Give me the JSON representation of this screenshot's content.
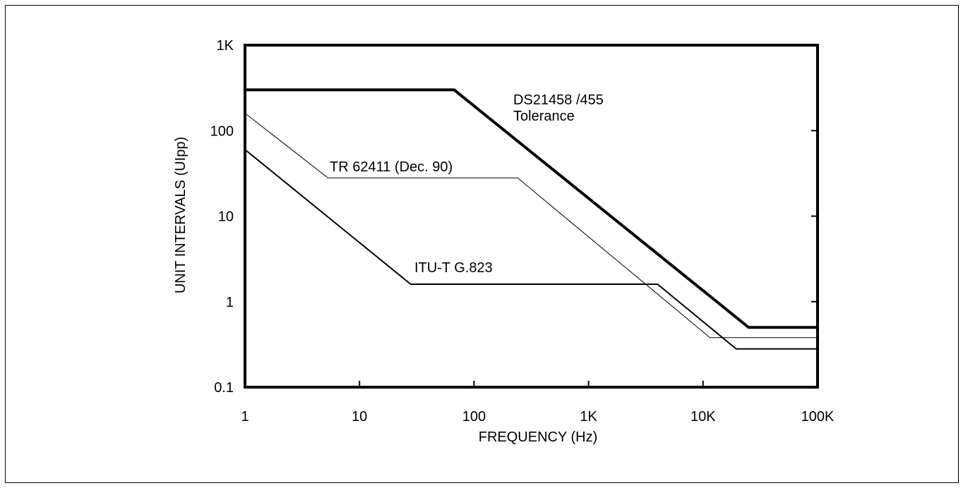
{
  "chart_data": {
    "type": "line",
    "x_scale": "log",
    "y_scale": "log",
    "xlabel": "FREQUENCY (Hz)",
    "ylabel": "UNIT INTERVALS (UIpp)",
    "xlim": [
      1,
      100000
    ],
    "ylim": [
      0.1,
      1000
    ],
    "x_ticks": [
      {
        "value": 1,
        "label": "1"
      },
      {
        "value": 10,
        "label": "10"
      },
      {
        "value": 100,
        "label": "100"
      },
      {
        "value": 1000,
        "label": "1K"
      },
      {
        "value": 10000,
        "label": "10K"
      },
      {
        "value": 100000,
        "label": "100K"
      }
    ],
    "y_ticks": [
      {
        "value": 0.1,
        "label": "0.1"
      },
      {
        "value": 1,
        "label": "1"
      },
      {
        "value": 10,
        "label": "10"
      },
      {
        "value": 100,
        "label": "100"
      },
      {
        "value": 1000,
        "label": "1K"
      }
    ],
    "grid": false,
    "series": [
      {
        "name": "DS21458 /455 Tolerance",
        "label_lines": [
          "DS21458 /455",
          "Tolerance"
        ],
        "stroke_width": 4,
        "points": [
          [
            1,
            300
          ],
          [
            67,
            300
          ],
          [
            25000,
            0.5
          ],
          [
            100000,
            0.5
          ]
        ]
      },
      {
        "name": "TR 62411 (Dec. 90)",
        "label_lines": [
          "TR 62411 (Dec. 90)"
        ],
        "stroke_width": 1,
        "points": [
          [
            1,
            160
          ],
          [
            5.3,
            28
          ],
          [
            240,
            28
          ],
          [
            11500,
            0.38
          ],
          [
            100000,
            0.38
          ]
        ]
      },
      {
        "name": "ITU-T G.823",
        "label_lines": [
          "ITU-T G.823"
        ],
        "stroke_width": 2,
        "points": [
          [
            1,
            60
          ],
          [
            28,
            1.6
          ],
          [
            4000,
            1.6
          ],
          [
            19500,
            0.28
          ],
          [
            100000,
            0.28
          ]
        ]
      }
    ]
  }
}
